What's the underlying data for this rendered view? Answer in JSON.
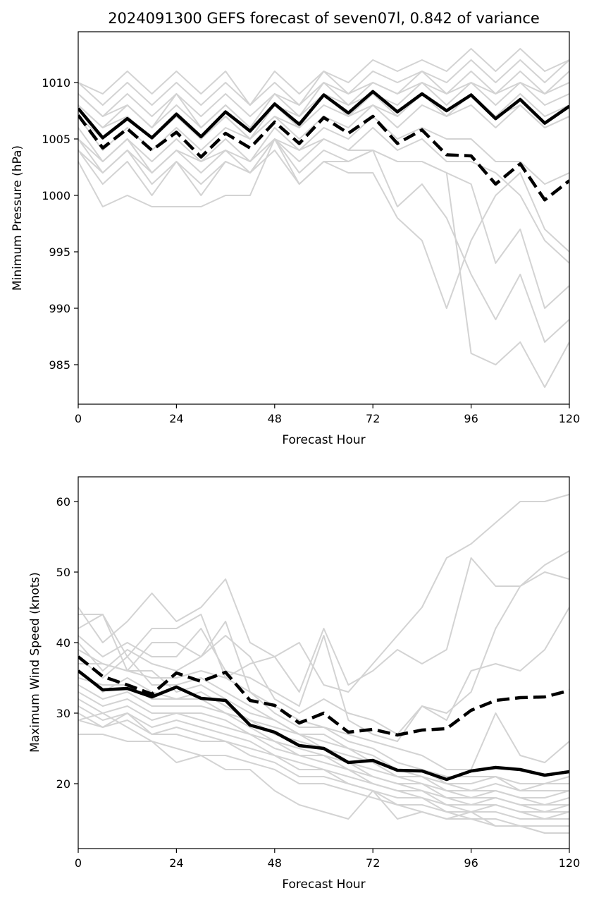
{
  "chart_data": [
    {
      "type": "line",
      "title": "2024091300 GEFS forecast of seven07l, 0.842 of variance",
      "xlabel": "Forecast Hour",
      "ylabel": "Minimum Pressure (hPa)",
      "xlim": [
        0,
        120
      ],
      "ylim": [
        981.5,
        1014.5
      ],
      "xticks": [
        0,
        24,
        48,
        72,
        96,
        120
      ],
      "yticks": [
        985,
        990,
        995,
        1000,
        1005,
        1010
      ],
      "x": [
        0,
        6,
        12,
        18,
        24,
        30,
        36,
        42,
        48,
        54,
        60,
        66,
        72,
        78,
        84,
        90,
        96,
        102,
        108,
        114,
        120
      ],
      "grid": false,
      "legend": "none",
      "colors": {
        "ensemble": "#d3d3d3",
        "mean": "#000000",
        "highlight": "#000000"
      },
      "ensemble": [
        [
          1010,
          1009,
          1011,
          1009,
          1011,
          1009,
          1011,
          1008,
          1011,
          1009,
          1011,
          1010,
          1012,
          1011,
          1012,
          1011,
          1013,
          1011,
          1013,
          1011,
          1012
        ],
        [
          1010,
          1008,
          1010,
          1008,
          1010,
          1008,
          1010,
          1008,
          1010,
          1008,
          1011,
          1009,
          1011,
          1010,
          1011,
          1010,
          1012,
          1010,
          1012,
          1010,
          1012
        ],
        [
          1009,
          1007,
          1009,
          1007,
          1009,
          1007,
          1009,
          1007,
          1009,
          1008,
          1010,
          1009,
          1010,
          1009,
          1011,
          1009,
          1011,
          1009,
          1011,
          1009,
          1011
        ],
        [
          1009,
          1007,
          1008,
          1006,
          1009,
          1006,
          1008,
          1006,
          1009,
          1007,
          1010,
          1008,
          1010,
          1009,
          1010,
          1009,
          1010,
          1009,
          1010,
          1009,
          1010
        ],
        [
          1008,
          1006,
          1008,
          1006,
          1008,
          1006,
          1008,
          1006,
          1008,
          1007,
          1009,
          1008,
          1009,
          1008,
          1010,
          1008,
          1010,
          1008,
          1010,
          1008,
          1009
        ],
        [
          1008,
          1006,
          1007,
          1005,
          1007,
          1005,
          1007,
          1005,
          1008,
          1006,
          1009,
          1007,
          1009,
          1007,
          1009,
          1007,
          1009,
          1007,
          1009,
          1007,
          1008
        ],
        [
          1007,
          1005,
          1007,
          1005,
          1007,
          1005,
          1007,
          1005,
          1007,
          1006,
          1008,
          1007,
          1008,
          1007,
          1009,
          1007,
          1009,
          1007,
          1008,
          1006,
          1007
        ],
        [
          1007,
          1004,
          1006,
          1004,
          1006,
          1004,
          1006,
          1005,
          1007,
          1005,
          1007,
          1006,
          1008,
          1006,
          1008,
          1007,
          1008,
          1006,
          1008,
          1006,
          1007
        ],
        [
          1006,
          1003,
          1005,
          1003,
          1005,
          1003,
          1005,
          1003,
          1006,
          1004,
          1006,
          1005,
          1007,
          1005,
          1006,
          1005,
          1005,
          1003,
          1003,
          1001,
          1002
        ],
        [
          1005,
          1003,
          1005,
          1002,
          1004,
          1002,
          1004,
          1002,
          1005,
          1003,
          1005,
          1004,
          1006,
          1004,
          1005,
          1003,
          1003,
          1002,
          1000,
          996,
          994
        ],
        [
          1005,
          1002,
          1004,
          1002,
          1004,
          1003,
          1004,
          1003,
          1005,
          1004,
          1005,
          1004,
          1004,
          1003,
          1003,
          1002,
          1001,
          994,
          997,
          990,
          992
        ],
        [
          1004,
          1002,
          1004,
          1001,
          1003,
          1001,
          1003,
          1002,
          1005,
          1002,
          1004,
          1003,
          1004,
          999,
          1001,
          998,
          993,
          989,
          993,
          987,
          989
        ],
        [
          1004,
          1001,
          1003,
          1000,
          1003,
          1000,
          1003,
          1002,
          1004,
          1001,
          1003,
          1003,
          1004,
          1003,
          1003,
          1002,
          986,
          985,
          987,
          983,
          987
        ],
        [
          1003,
          999,
          1000,
          999,
          999,
          999,
          1000,
          1000,
          1005,
          1001,
          1003,
          1002,
          1002,
          998,
          996,
          990,
          996,
          1000,
          1002,
          997,
          995
        ]
      ],
      "mean": [
        1007.7,
        1005.1,
        1006.8,
        1005.1,
        1007.2,
        1005.2,
        1007.4,
        1005.7,
        1008.1,
        1006.3,
        1008.9,
        1007.3,
        1009.2,
        1007.4,
        1009.0,
        1007.5,
        1008.9,
        1006.8,
        1008.5,
        1006.4,
        1007.9
      ],
      "highlight": [
        1007.1,
        1004.2,
        1005.9,
        1004.0,
        1005.6,
        1003.4,
        1005.5,
        1004.2,
        1006.5,
        1004.6,
        1006.9,
        1005.5,
        1007.0,
        1004.6,
        1005.8,
        1003.6,
        1003.5,
        1001.0,
        1002.8,
        999.6,
        1001.3
      ]
    },
    {
      "type": "line",
      "title": "",
      "xlabel": "Forecast Hour",
      "ylabel": "Maximum Wind Speed (knots)",
      "xlim": [
        0,
        120
      ],
      "ylim": [
        10.8,
        63.5
      ],
      "xticks": [
        0,
        24,
        48,
        72,
        96,
        120
      ],
      "yticks": [
        20,
        30,
        40,
        50,
        60
      ],
      "x": [
        0,
        6,
        12,
        18,
        24,
        30,
        36,
        42,
        48,
        54,
        60,
        66,
        72,
        78,
        84,
        90,
        96,
        102,
        108,
        114,
        120
      ],
      "grid": false,
      "legend": "none",
      "colors": {
        "ensemble": "#d3d3d3",
        "mean": "#000000",
        "highlight": "#000000"
      },
      "ensemble": [
        [
          45,
          40,
          43,
          47,
          43,
          45,
          49,
          40,
          38,
          40,
          34,
          33,
          37,
          41,
          45,
          52,
          54,
          57,
          60,
          60,
          61
        ],
        [
          44,
          44,
          38,
          42,
          42,
          44,
          35,
          37,
          38,
          33,
          42,
          34,
          36,
          39,
          37,
          39,
          52,
          48,
          48,
          51,
          53
        ],
        [
          42,
          44,
          36,
          40,
          40,
          38,
          41,
          38,
          32,
          30,
          32,
          30,
          29,
          27,
          31,
          30,
          33,
          42,
          48,
          50,
          49
        ],
        [
          41,
          38,
          40,
          38,
          38,
          42,
          36,
          35,
          33,
          31,
          41,
          29,
          27,
          26,
          31,
          29,
          36,
          37,
          36,
          39,
          45
        ],
        [
          40,
          36,
          39,
          37,
          36,
          38,
          43,
          33,
          31,
          29,
          28,
          27,
          26,
          25,
          24,
          22,
          22,
          30,
          24,
          23,
          26
        ],
        [
          39,
          37,
          36,
          35,
          35,
          36,
          35,
          33,
          30,
          28,
          28,
          26,
          25,
          23,
          22,
          21,
          21,
          21,
          20,
          20,
          21
        ],
        [
          38,
          35,
          38,
          34,
          34,
          35,
          33,
          31,
          29,
          27,
          27,
          25,
          24,
          22,
          22,
          20,
          20,
          21,
          19,
          20,
          20
        ],
        [
          37,
          37,
          36,
          36,
          33,
          34,
          32,
          30,
          29,
          27,
          26,
          25,
          23,
          22,
          21,
          20,
          19,
          20,
          19,
          19,
          19
        ],
        [
          36,
          33,
          35,
          33,
          32,
          33,
          31,
          29,
          28,
          27,
          25,
          24,
          23,
          21,
          21,
          19,
          19,
          19,
          18,
          18,
          19
        ],
        [
          35,
          34,
          34,
          32,
          32,
          32,
          30,
          29,
          27,
          26,
          25,
          23,
          22,
          21,
          20,
          19,
          18,
          19,
          18,
          17,
          18
        ],
        [
          34,
          32,
          33,
          31,
          31,
          31,
          30,
          28,
          26,
          25,
          24,
          23,
          21,
          20,
          20,
          18,
          18,
          18,
          17,
          17,
          17
        ],
        [
          33,
          31,
          32,
          30,
          30,
          30,
          29,
          27,
          26,
          24,
          24,
          22,
          21,
          20,
          19,
          18,
          17,
          18,
          17,
          16,
          17
        ],
        [
          32,
          30,
          31,
          29,
          30,
          29,
          28,
          27,
          25,
          24,
          23,
          22,
          20,
          19,
          19,
          17,
          17,
          17,
          16,
          16,
          16
        ],
        [
          31,
          29,
          30,
          28,
          29,
          28,
          27,
          26,
          24,
          23,
          22,
          21,
          20,
          19,
          18,
          17,
          16,
          17,
          16,
          15,
          16
        ],
        [
          30,
          28,
          30,
          27,
          28,
          27,
          26,
          25,
          24,
          22,
          22,
          20,
          19,
          18,
          18,
          16,
          16,
          16,
          15,
          15,
          15
        ],
        [
          29,
          28,
          29,
          27,
          27,
          26,
          26,
          24,
          23,
          21,
          21,
          20,
          19,
          17,
          17,
          16,
          15,
          15,
          14,
          14,
          14
        ],
        [
          27,
          27,
          26,
          26,
          25,
          24,
          24,
          23,
          22,
          20,
          20,
          19,
          18,
          17,
          16,
          15,
          15,
          14,
          14,
          13,
          13
        ],
        [
          29,
          30,
          28,
          26,
          23,
          24,
          22,
          22,
          19,
          17,
          16,
          15,
          19,
          15,
          16,
          15,
          16,
          14,
          14,
          13,
          13
        ]
      ],
      "mean": [
        36.0,
        33.3,
        33.5,
        32.3,
        33.7,
        32.1,
        31.8,
        28.3,
        27.3,
        25.4,
        25.0,
        23.0,
        23.3,
        21.9,
        21.8,
        20.6,
        21.8,
        22.3,
        22.0,
        21.2,
        21.7
      ],
      "highlight": [
        38.0,
        35.2,
        34.0,
        32.7,
        35.7,
        34.5,
        35.8,
        31.8,
        31.1,
        28.6,
        30.0,
        27.3,
        27.7,
        26.9,
        27.6,
        27.8,
        30.4,
        31.8,
        32.2,
        32.3,
        33.2
      ]
    }
  ]
}
